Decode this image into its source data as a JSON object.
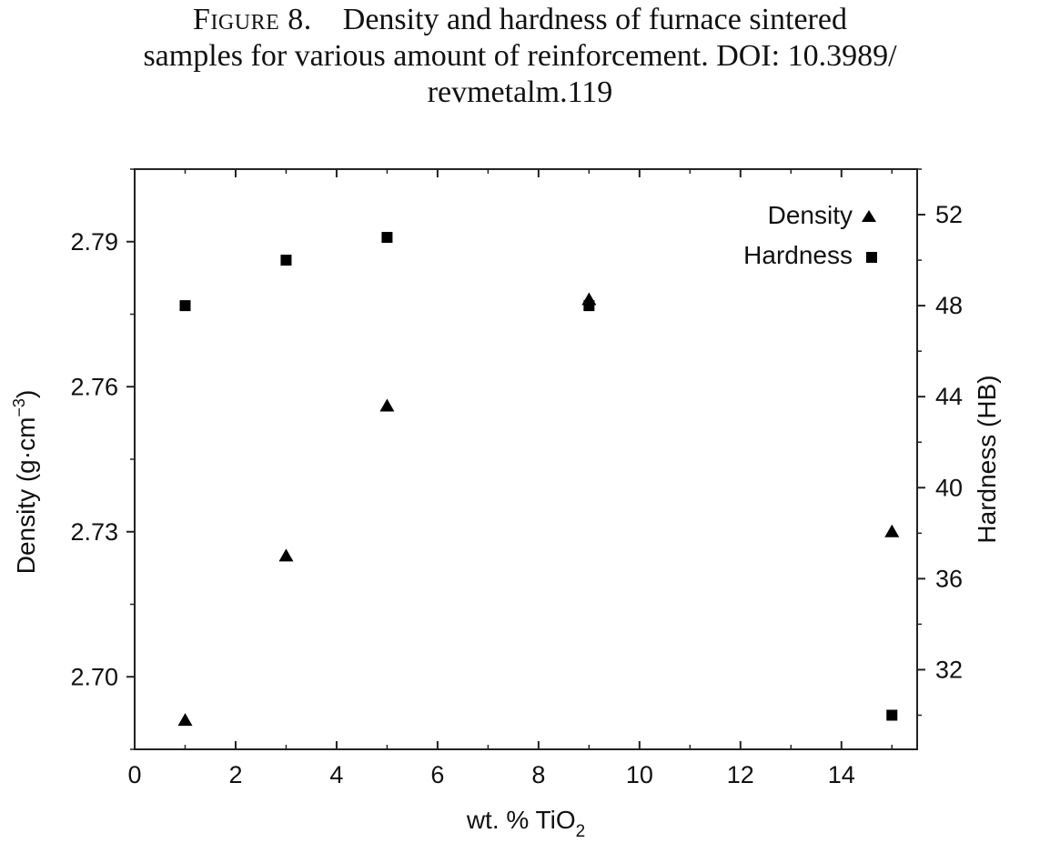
{
  "caption": {
    "figure_label": "Figure 8.",
    "line1_text": "Density and hardness of furnace sintered",
    "line2": "samples for various amount of reinforcement. DOI: 10.3989/",
    "line3": "revmetalm.119"
  },
  "chart_data": {
    "type": "scatter",
    "xlabel_main": "wt. % TiO",
    "xlabel_sub": "2",
    "ylabel_left": "Density (g·cm",
    "ylabel_left_sup": "−3",
    "ylabel_left_close": ")",
    "ylabel_right": "Hardness (HB)",
    "xlim": [
      0,
      15.5
    ],
    "ylim_left": [
      2.685,
      2.805
    ],
    "ylim_right": [
      28.5,
      54
    ],
    "x_ticks": [
      "0",
      "2",
      "4",
      "6",
      "8",
      "10",
      "12",
      "14"
    ],
    "y_left_ticks": [
      "2.70",
      "2.73",
      "2.76",
      "2.79"
    ],
    "y_right_ticks": [
      "32",
      "36",
      "40",
      "44",
      "48",
      "52"
    ],
    "legend_position": "top-right",
    "series": [
      {
        "name": "Density",
        "axis": "left",
        "marker": "triangle",
        "x": [
          1,
          3,
          5,
          9,
          15
        ],
        "y": [
          2.691,
          2.725,
          2.756,
          2.778,
          2.73
        ]
      },
      {
        "name": "Hardness",
        "axis": "right",
        "marker": "square",
        "x": [
          1,
          3,
          5,
          9,
          15
        ],
        "y": [
          48,
          50,
          51,
          48,
          30
        ]
      }
    ],
    "colors": {
      "marker": "#000000",
      "axis": "#222222"
    }
  }
}
